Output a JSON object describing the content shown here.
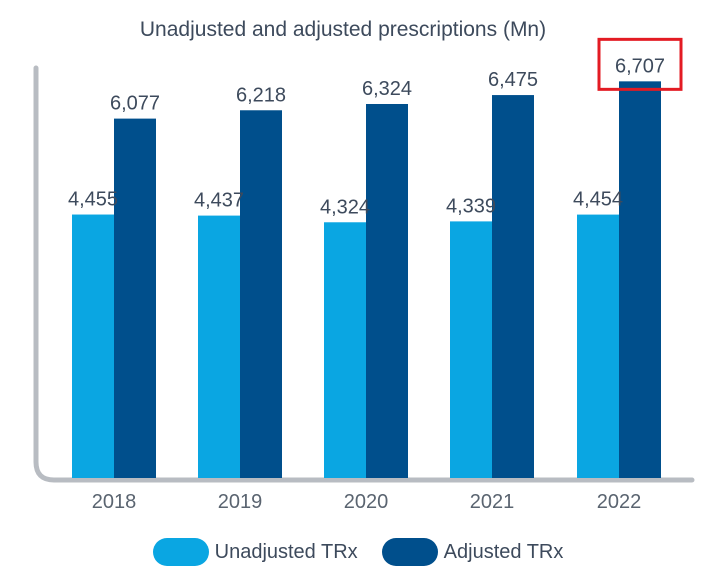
{
  "chart_data": {
    "type": "bar",
    "title": "Unadjusted and adjusted prescriptions (Mn)",
    "xlabel": "",
    "ylabel": "",
    "categories": [
      "2018",
      "2019",
      "2020",
      "2021",
      "2022"
    ],
    "series": [
      {
        "name": "Unadjusted TRx",
        "values": [
          4455,
          4437,
          4324,
          4339,
          4454
        ],
        "labels": [
          "4,455",
          "4,437",
          "4,324",
          "4,339",
          "4,454"
        ],
        "color": "#0aa6e2"
      },
      {
        "name": "Adjusted TRx",
        "values": [
          6077,
          6218,
          6324,
          6475,
          6707
        ],
        "labels": [
          "6,077",
          "6,218",
          "6,324",
          "6,475",
          "6,707"
        ],
        "color": "#004f8c"
      }
    ],
    "ylim": [
      0,
      7000
    ],
    "grid": false,
    "legend_position": "bottom",
    "highlight": {
      "series": 1,
      "category": 4,
      "color": "#e31b23"
    },
    "axis_color": "#b8bcc2",
    "text_color": "#3d4a5c",
    "tick_color": "#5a6470"
  }
}
